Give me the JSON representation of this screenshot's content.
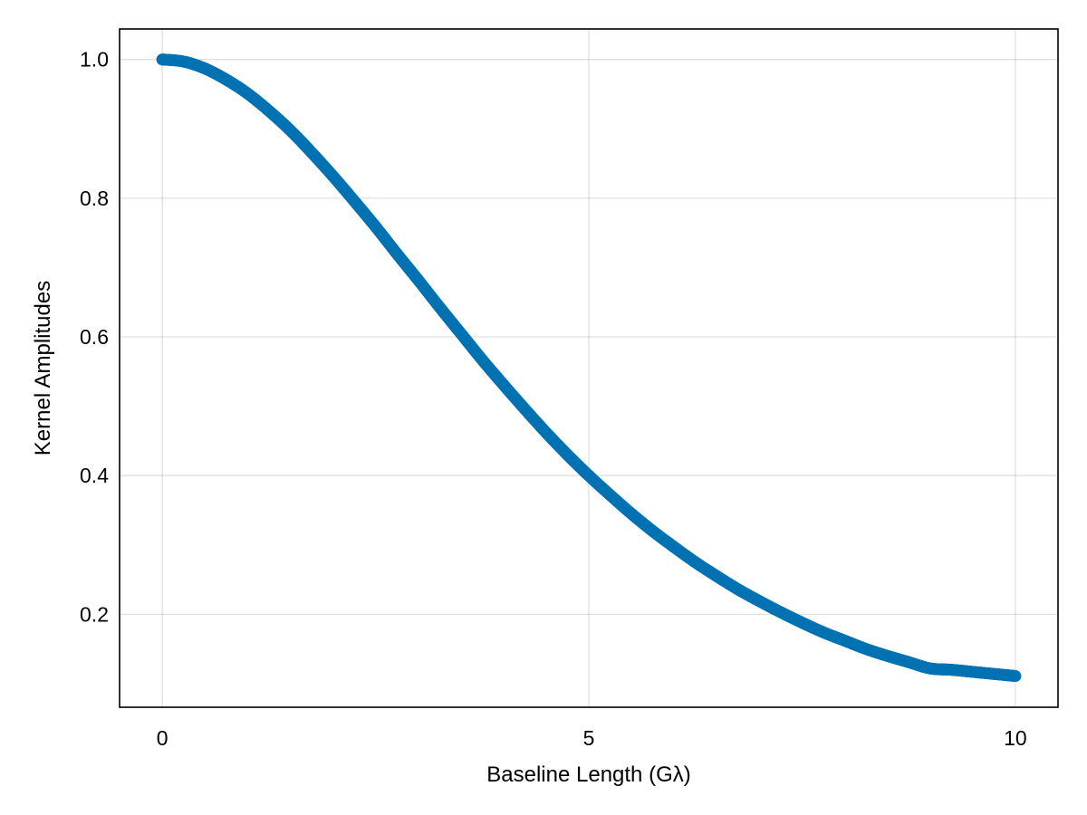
{
  "chart_data": {
    "type": "scatter",
    "title": "",
    "xlabel": "Baseline Length (Gλ)",
    "ylabel": "Kernel Amplitudes",
    "xlim": [
      -0.5,
      10.5
    ],
    "ylim": [
      0.066,
      1.044
    ],
    "x_ticks": [
      0,
      5,
      10
    ],
    "x_tick_labels": [
      "0",
      "5",
      "10"
    ],
    "y_ticks": [
      0.2,
      0.4,
      0.6,
      0.8,
      1.0
    ],
    "y_tick_labels": [
      "0.2",
      "0.4",
      "0.6",
      "0.8",
      "1.0"
    ],
    "grid": true,
    "legend": "none",
    "series": [
      {
        "color": "#0072b2",
        "x": [
          0,
          0.25,
          0.5,
          0.75,
          1,
          1.25,
          1.5,
          1.75,
          2,
          2.25,
          2.5,
          2.75,
          3,
          3.25,
          3.5,
          3.75,
          4,
          4.25,
          4.5,
          4.75,
          5,
          5.25,
          5.5,
          5.75,
          6,
          6.25,
          6.5,
          6.75,
          7,
          7.25,
          7.5,
          7.75,
          8,
          8.25,
          8.5,
          8.75,
          9,
          9.25,
          9.5,
          9.75,
          10
        ],
        "y": [
          1.0,
          0.997,
          0.987,
          0.971,
          0.951,
          0.926,
          0.898,
          0.866,
          0.832,
          0.796,
          0.759,
          0.72,
          0.682,
          0.643,
          0.605,
          0.567,
          0.531,
          0.496,
          0.462,
          0.43,
          0.4,
          0.372,
          0.345,
          0.32,
          0.297,
          0.275,
          0.255,
          0.236,
          0.219,
          0.203,
          0.188,
          0.174,
          0.162,
          0.15,
          0.14,
          0.131,
          0.122,
          0.12,
          0.117,
          0.114,
          0.111
        ]
      }
    ]
  }
}
